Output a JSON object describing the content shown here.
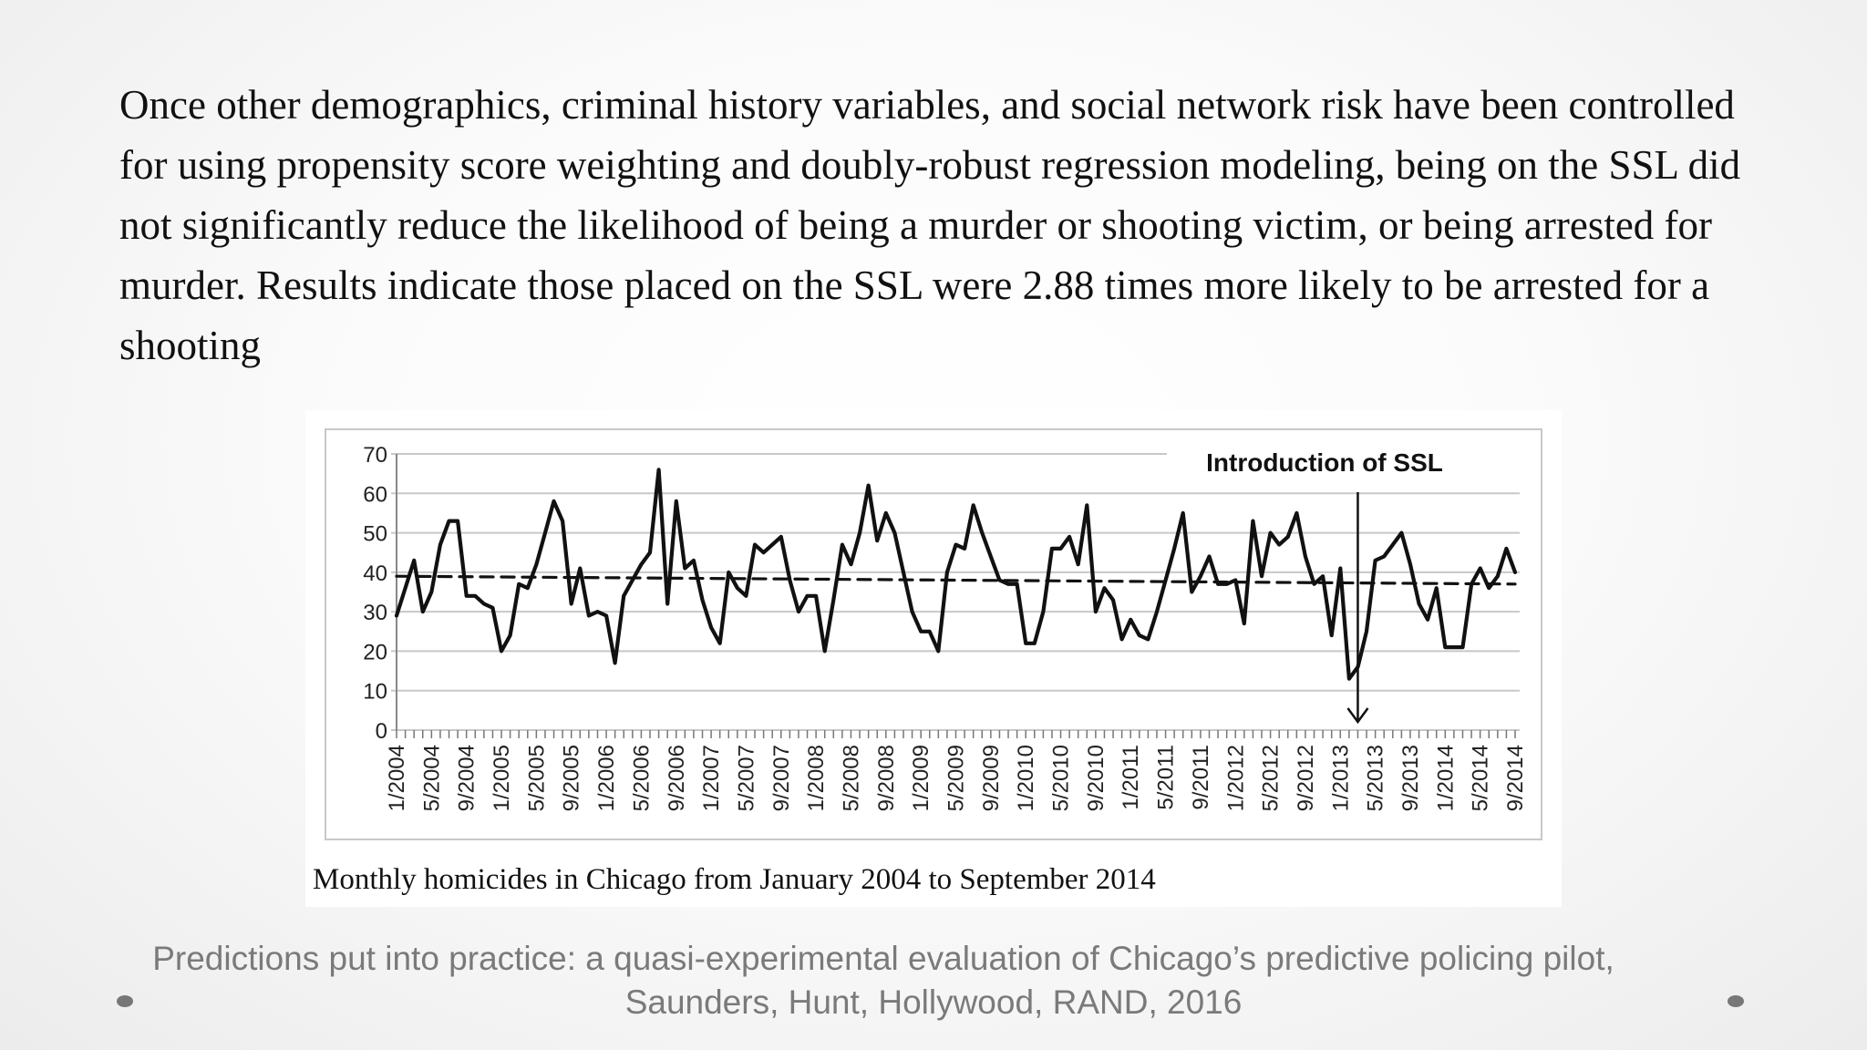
{
  "slide": {
    "body_text": "Once other demographics, criminal history variables, and social network risk have been controlled for using propensity score weighting and doubly-robust regression modeling, being on the SSL did not significantly reduce the likelihood of being a murder or shooting victim, or being arrested for murder. Results indicate those placed on the SSL were 2.88 times more likely to be arrested for a shooting",
    "figure_caption": "Monthly homicides in Chicago from January 2004 to September 2014",
    "citation_line1": "Predictions put into practice: a quasi-experimental evaluation of Chicago’s predictive policing pilot,",
    "citation_line2": "Saunders, Hunt, Hollywood, RAND, 2016"
  },
  "colors": {
    "line": "#111111",
    "grid": "#c8c8c8",
    "citation": "#7a7a7a"
  },
  "chart_data": {
    "type": "line",
    "title": "",
    "xlabel": "",
    "ylabel": "",
    "ylim": [
      0,
      70
    ],
    "yticks": [
      0,
      10,
      20,
      30,
      40,
      50,
      60,
      70
    ],
    "grid": true,
    "xtick_labels": [
      "1/2004",
      "5/2004",
      "9/2004",
      "1/2005",
      "5/2005",
      "9/2005",
      "1/2006",
      "5/2006",
      "9/2006",
      "1/2007",
      "5/2007",
      "9/2007",
      "1/2008",
      "5/2008",
      "9/2008",
      "1/2009",
      "5/2009",
      "9/2009",
      "1/2010",
      "5/2010",
      "9/2010",
      "1/2011",
      "5/2011",
      "9/2011",
      "1/2012",
      "5/2012",
      "9/2012",
      "1/2013",
      "5/2013",
      "9/2013",
      "1/2014",
      "5/2014",
      "9/2014"
    ],
    "x_start": "1/2004",
    "x_end": "9/2014",
    "series": [
      {
        "style": "solid",
        "values": [
          29,
          36,
          43,
          30,
          35,
          47,
          53,
          53,
          34,
          34,
          32,
          31,
          20,
          24,
          37,
          36,
          42,
          50,
          58,
          53,
          32,
          41,
          29,
          30,
          29,
          17,
          34,
          38,
          42,
          45,
          66,
          32,
          58,
          41,
          43,
          33,
          26,
          22,
          40,
          36,
          34,
          47,
          45,
          47,
          49,
          38,
          30,
          34,
          34,
          20,
          33,
          47,
          42,
          50,
          62,
          48,
          55,
          50,
          40,
          30,
          25,
          25,
          20,
          40,
          47,
          46,
          57,
          50,
          44,
          38,
          37,
          37,
          22,
          22,
          30,
          46,
          46,
          49,
          42,
          57,
          30,
          36,
          33,
          23,
          28,
          24,
          23,
          30,
          38,
          46,
          55,
          35,
          39,
          44,
          37,
          37,
          38,
          27,
          53,
          39,
          50,
          47,
          49,
          55,
          44,
          37,
          39,
          24,
          41,
          13,
          16,
          25,
          43,
          44,
          47,
          50,
          42,
          32,
          28,
          36,
          21,
          21,
          21,
          37,
          41,
          36,
          39,
          46,
          40
        ]
      },
      {
        "style": "dashed",
        "values": [
          39,
          37
        ]
      }
    ],
    "annotations": [
      {
        "text": "Introduction of SSL",
        "at": "3/2013",
        "style": "arrow-down"
      }
    ]
  }
}
